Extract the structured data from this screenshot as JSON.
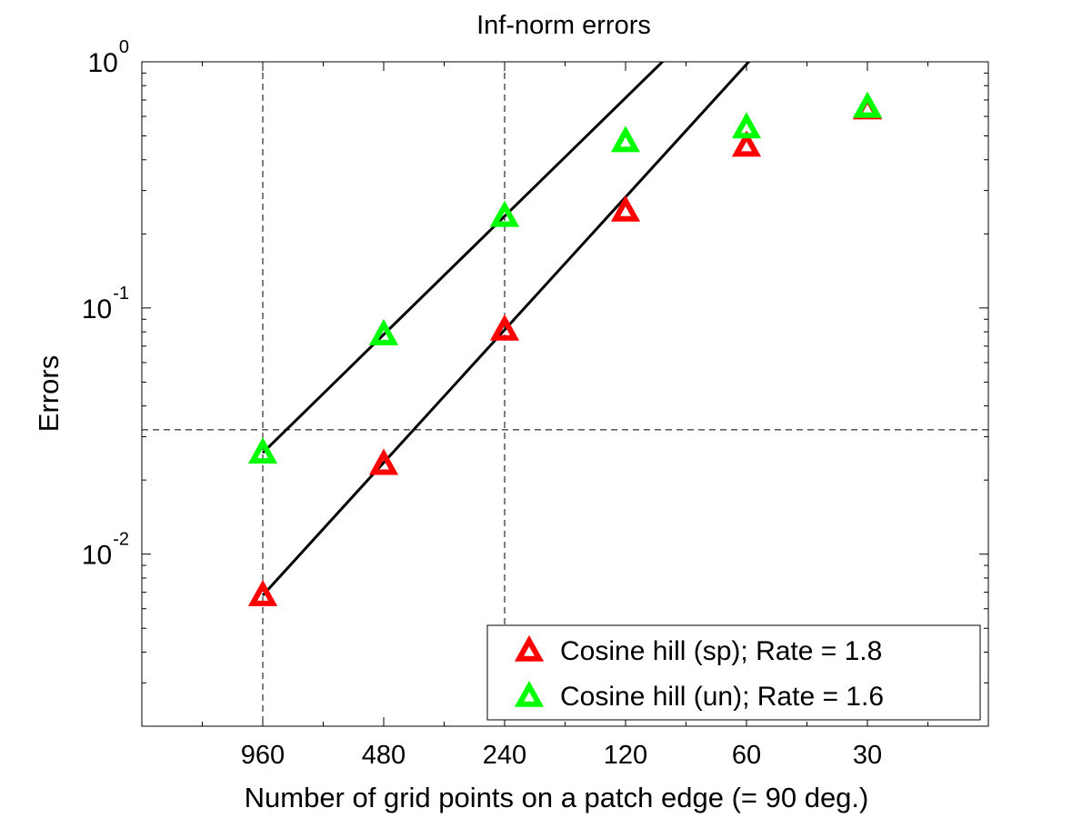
{
  "chart_data": {
    "type": "scatter",
    "title": "Inf-norm errors",
    "xlabel": "Number of grid points on a patch edge (= 90 deg.)",
    "ylabel": "Errors",
    "x_scale": "log2-reversed",
    "xlim": [
      1920,
      15
    ],
    "ylim": [
      0.002,
      1
    ],
    "y_scale": "log",
    "grid": "dashed reference lines at x = 960, x = 240 and y = 0.032",
    "x_ticks": [
      {
        "value": 960,
        "label": "960"
      },
      {
        "value": 480,
        "label": "480"
      },
      {
        "value": 240,
        "label": "240"
      },
      {
        "value": 120,
        "label": "120"
      },
      {
        "value": 60,
        "label": "60"
      },
      {
        "value": 30,
        "label": "30"
      }
    ],
    "y_ticks": [
      {
        "value": 1,
        "base": "10",
        "exp": "0"
      },
      {
        "value": 0.1,
        "base": "10",
        "exp": "-1"
      },
      {
        "value": 0.01,
        "base": "10",
        "exp": "-2"
      }
    ],
    "ref_lines": {
      "x": [
        960,
        240
      ],
      "y": [
        0.032
      ]
    },
    "legend_position": "bottom-right",
    "series": [
      {
        "name": "Cosine hill (sp); Rate =  1.8",
        "color": "#ff0000",
        "marker": "triangle",
        "x": [
          960,
          480,
          240,
          120,
          60,
          30
        ],
        "y": [
          0.0068,
          0.0232,
          0.0815,
          0.248,
          0.455,
          0.645
        ],
        "fit": {
          "x": [
            960,
            240
          ],
          "y": [
            0.0068,
            0.0815
          ],
          "slope": 1.8
        }
      },
      {
        "name": "Cosine hill (un); Rate =  1.6",
        "color": "#00ff00",
        "marker": "triangle",
        "x": [
          960,
          480,
          240,
          120,
          60,
          30
        ],
        "y": [
          0.0258,
          0.078,
          0.236,
          0.475,
          0.54,
          0.655
        ],
        "fit": {
          "x": [
            960,
            240
          ],
          "y": [
            0.0258,
            0.236
          ],
          "slope": 1.6
        }
      }
    ]
  }
}
